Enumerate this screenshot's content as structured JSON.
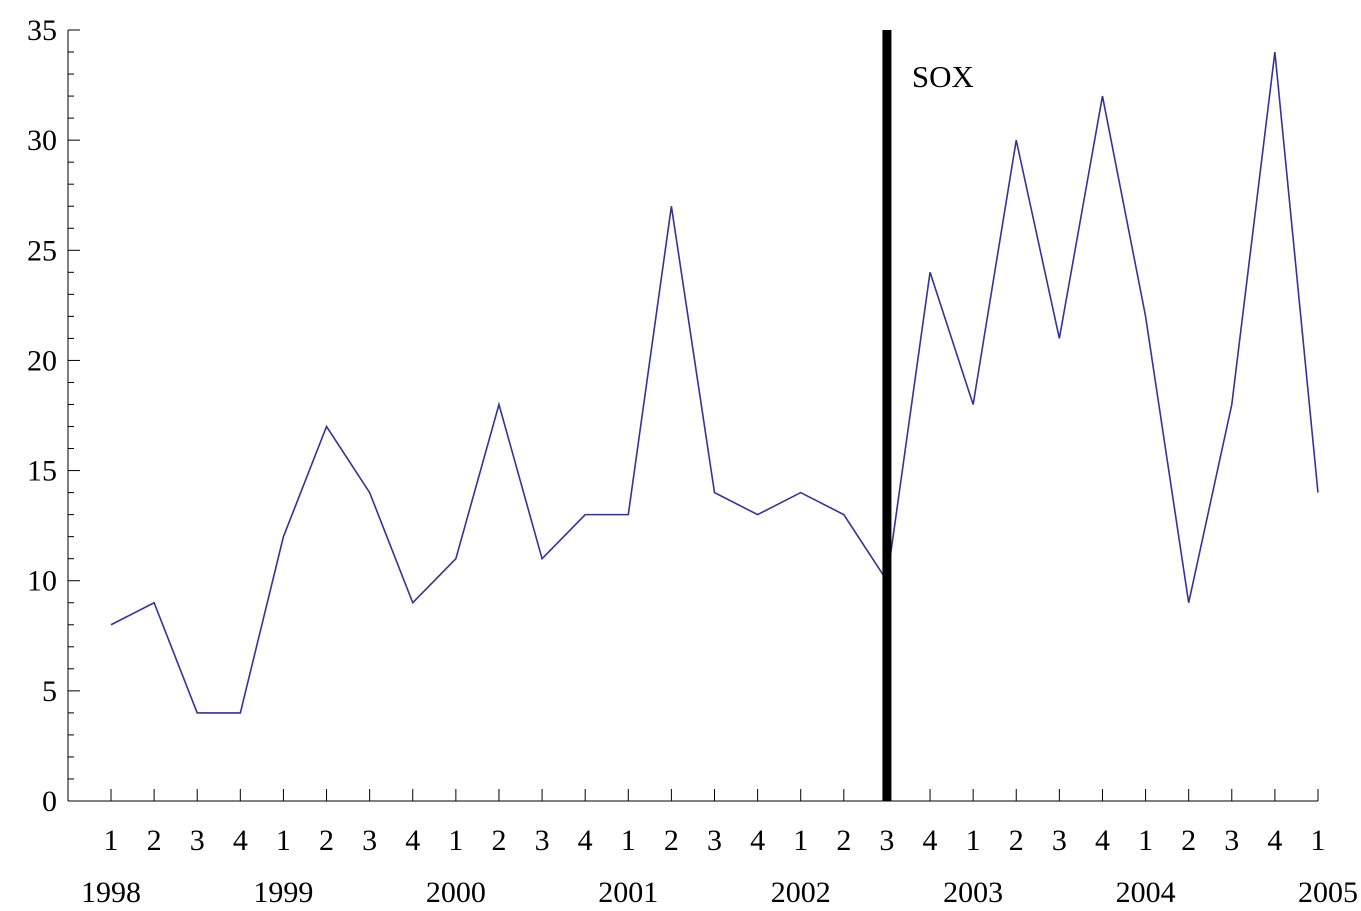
{
  "chart_data": {
    "type": "line",
    "title": "",
    "xlabel": "",
    "ylabel": "",
    "ylim": [
      0,
      35
    ],
    "yticks": [
      "0",
      "5",
      "10",
      "15",
      "20",
      "25",
      "30",
      "35"
    ],
    "grid": false,
    "legend": "none",
    "x_quarter_labels": [
      "1",
      "2",
      "3",
      "4",
      "1",
      "2",
      "3",
      "4",
      "1",
      "2",
      "3",
      "4",
      "1",
      "2",
      "3",
      "4",
      "1",
      "2",
      "3",
      "4",
      "1",
      "2",
      "3",
      "4",
      "1",
      "2",
      "3",
      "4",
      "1"
    ],
    "x_year_labels": [
      "1998",
      "1999",
      "2000",
      "2001",
      "2002",
      "2003",
      "2004",
      "2005"
    ],
    "series": [
      {
        "color": "#333399",
        "values": [
          8,
          9,
          4,
          4,
          12,
          17,
          14,
          9,
          11,
          18,
          11,
          13,
          13,
          27,
          14,
          13,
          14,
          13,
          10,
          24,
          18,
          30,
          21,
          32,
          22,
          9,
          18,
          34,
          14
        ]
      }
    ],
    "annotations": [
      {
        "type": "vline",
        "x_index": 18,
        "label": "SOX",
        "color": "#000000"
      }
    ]
  }
}
